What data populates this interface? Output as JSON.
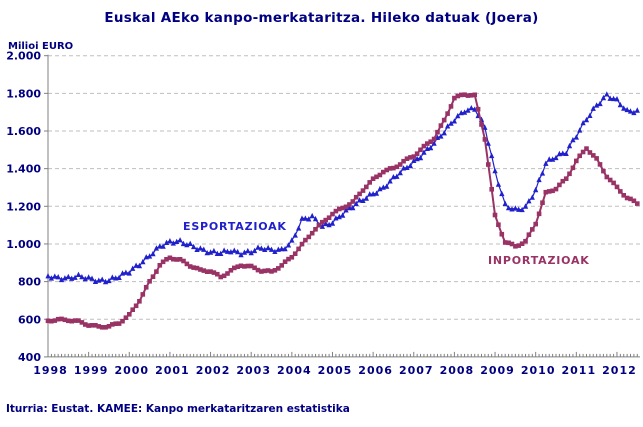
{
  "title": "Euskal AEko kanpo-merkataritza. Hileko datuak (Joera)",
  "y_axis_unit_label": "Milioi EURO",
  "source_note": "Iturria: Eustat. KAMEE: Kanpo merkataritzaren estatistika",
  "colors": {
    "title_text": "#000080",
    "axis_text": "#000080",
    "grid_line": "#BFBFBF",
    "axis_line": "#808080",
    "esportazioak": "#2121CC",
    "inportazioak": "#993366",
    "background": "#FFFFFF"
  },
  "chart_data": {
    "type": "line",
    "title": "Euskal AEko kanpo-merkataritza. Hileko datuak (Joera)",
    "xlabel": "",
    "ylabel": "Milioi EURO",
    "ylim": [
      400,
      2000
    ],
    "ytick_step": 200,
    "ytick_labels": [
      "2.000",
      "1.800",
      "1.600",
      "1.400",
      "1.200",
      "1.000",
      "800",
      "600",
      "400"
    ],
    "xtick_labels": [
      "1998",
      "1999",
      "2000",
      "2001",
      "2002",
      "2003",
      "2004",
      "2005",
      "2006",
      "2007",
      "2008",
      "2009",
      "2010",
      "2011",
      "2012"
    ],
    "grid": "horizontal-dashed",
    "legend_position": "inline-labels-on-chart",
    "x_unit": "decimal_year_quarterly_trend",
    "x": [
      1998.0,
      1998.25,
      1998.5,
      1998.75,
      1999.0,
      1999.25,
      1999.5,
      1999.75,
      2000.0,
      2000.25,
      2000.5,
      2000.75,
      2001.0,
      2001.25,
      2001.5,
      2001.75,
      2002.0,
      2002.25,
      2002.5,
      2002.75,
      2003.0,
      2003.25,
      2003.5,
      2003.75,
      2004.0,
      2004.25,
      2004.5,
      2004.75,
      2005.0,
      2005.25,
      2005.5,
      2005.75,
      2006.0,
      2006.25,
      2006.5,
      2006.75,
      2007.0,
      2007.25,
      2007.5,
      2007.75,
      2008.0,
      2008.25,
      2008.5,
      2008.75,
      2009.0,
      2009.25,
      2009.5,
      2009.75,
      2010.0,
      2010.25,
      2010.5,
      2010.75,
      2011.0,
      2011.25,
      2011.5,
      2011.75,
      2012.0,
      2012.25,
      2012.5
    ],
    "series": [
      {
        "name": "ESPORTAZIOAK",
        "color": "#2121CC",
        "marker": "triangle",
        "values": [
          830,
          825,
          820,
          824,
          814,
          808,
          812,
          826,
          848,
          892,
          944,
          988,
          1005,
          1010,
          998,
          976,
          952,
          948,
          966,
          956,
          960,
          974,
          966,
          972,
          1015,
          1125,
          1140,
          1095,
          1120,
          1160,
          1195,
          1235,
          1272,
          1300,
          1345,
          1390,
          1438,
          1488,
          1535,
          1590,
          1660,
          1712,
          1722,
          1615,
          1380,
          1210,
          1186,
          1192,
          1280,
          1430,
          1470,
          1490,
          1570,
          1660,
          1740,
          1795,
          1760,
          1700,
          1705
        ]
      },
      {
        "name": "INPORTAZIOAK",
        "color": "#993366",
        "marker": "square",
        "values": [
          592,
          598,
          596,
          588,
          570,
          560,
          562,
          580,
          622,
          700,
          798,
          888,
          928,
          915,
          885,
          860,
          856,
          824,
          858,
          888,
          878,
          858,
          852,
          886,
          932,
          995,
          1062,
          1112,
          1160,
          1192,
          1222,
          1288,
          1342,
          1385,
          1402,
          1438,
          1468,
          1515,
          1562,
          1655,
          1775,
          1795,
          1788,
          1560,
          1150,
          1010,
          988,
          1012,
          1110,
          1270,
          1295,
          1345,
          1440,
          1510,
          1450,
          1360,
          1300,
          1245,
          1216
        ]
      }
    ]
  }
}
